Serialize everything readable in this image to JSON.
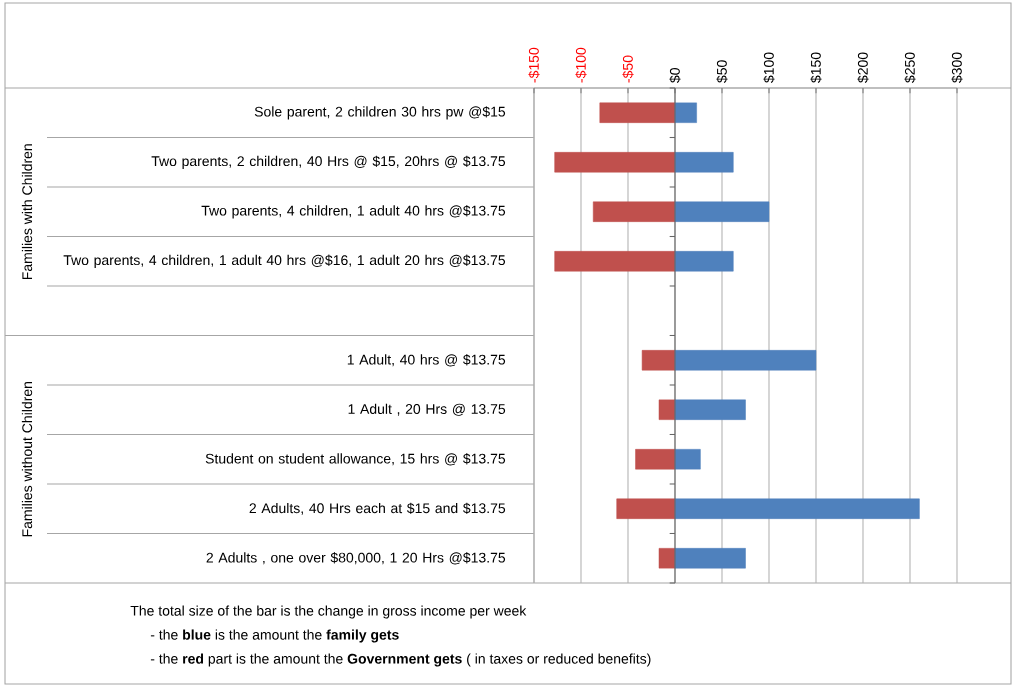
{
  "chart_data": {
    "type": "bar",
    "orientation": "horizontal",
    "stacked": true,
    "categories": [
      "Sole parent, 2 children 30 hrs pw @$15",
      "Two parents, 2 children, 40 Hrs @ $15, 20hrs @ $13.75",
      "Two parents, 4 children, 1 adult 40 hrs @$13.75",
      "Two parents, 4 children, 1 adult 40 hrs @$16, 1 adult 20 hrs @$13.75",
      null,
      "1 Adult, 40 hrs @ $13.75",
      "1 Adult , 20 Hrs @ 13.75",
      "Student on student allowance, 15 hrs @ $13.75",
      "2 Adults, 40 Hrs each at $15 and $13.75",
      "2 Adults , one over $80,000, 1 20 Hrs @$13.75"
    ],
    "series": [
      {
        "color": "#c0504d",
        "values": [
          -80,
          -128,
          -87,
          -128,
          null,
          -35,
          -17,
          -42,
          -62,
          -17
        ]
      },
      {
        "color": "#4f81bd",
        "values": [
          23,
          62,
          100,
          62,
          null,
          150,
          75,
          27,
          260,
          75
        ]
      }
    ],
    "xlim": [
      -150,
      300
    ],
    "xticks": [
      {
        "value": -150,
        "label": "-$150"
      },
      {
        "value": -100,
        "label": "-$100"
      },
      {
        "value": -50,
        "label": "-$50"
      },
      {
        "value": 0,
        "label": "$0"
      },
      {
        "value": 50,
        "label": "$50"
      },
      {
        "value": 100,
        "label": "$100"
      },
      {
        "value": 150,
        "label": "$150"
      },
      {
        "value": 200,
        "label": "$200"
      },
      {
        "value": 250,
        "label": "$250"
      },
      {
        "value": 300,
        "label": "$300"
      }
    ],
    "grid": "x",
    "annotations": [
      "Families with Children",
      "Families without Children",
      "The total size of the bar is the change in gross income per week",
      "- the **blue** is the amount the **family gets**",
      "- the **red** part is the amount the **Government gets** ( in taxes or reduced benefits)"
    ]
  }
}
